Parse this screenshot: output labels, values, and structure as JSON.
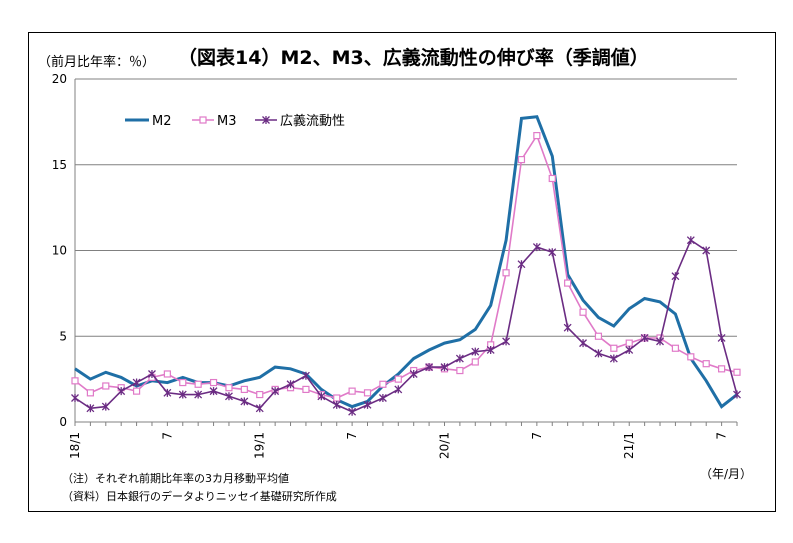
{
  "chart_data": {
    "type": "line",
    "title": "（図表14）M2、M3、広義流動性の伸び率（季調値）",
    "ylabel": "（前月比年率：％）",
    "xlabel": "（年/月）",
    "ylim": [
      0,
      20
    ],
    "yticks": [
      0,
      5,
      10,
      15,
      20
    ],
    "grid": "horizontal",
    "legend_position": "top-left",
    "x_tick_labels": [
      {
        "index": 0,
        "label": "18/1"
      },
      {
        "index": 6,
        "label": "7"
      },
      {
        "index": 12,
        "label": "19/1"
      },
      {
        "index": 18,
        "label": "7"
      },
      {
        "index": 24,
        "label": "20/1"
      },
      {
        "index": 30,
        "label": "7"
      },
      {
        "index": 36,
        "label": "21/1"
      },
      {
        "index": 42,
        "label": "7"
      }
    ],
    "series": [
      {
        "name": "M2",
        "color": "#1f6fa6",
        "marker": "none",
        "values": [
          3.1,
          2.5,
          2.9,
          2.6,
          2.1,
          2.4,
          2.3,
          2.6,
          2.3,
          2.3,
          2.1,
          2.4,
          2.6,
          3.2,
          3.1,
          2.8,
          1.9,
          1.3,
          0.9,
          1.2,
          2.1,
          2.8,
          3.7,
          4.2,
          4.6,
          4.8,
          5.4,
          6.8,
          10.6,
          17.7,
          17.8,
          15.5,
          8.6,
          7.1,
          6.1,
          5.6,
          6.6,
          7.2,
          7.0,
          6.3,
          3.7,
          2.4,
          0.9,
          1.6
        ]
      },
      {
        "name": "M3",
        "color": "#e07ac8",
        "marker": "square",
        "values": [
          2.4,
          1.7,
          2.1,
          2.0,
          1.8,
          2.6,
          2.8,
          2.3,
          2.2,
          2.3,
          2.0,
          1.9,
          1.6,
          1.9,
          2.0,
          1.9,
          1.6,
          1.4,
          1.8,
          1.7,
          2.2,
          2.5,
          3.0,
          3.2,
          3.1,
          3.0,
          3.5,
          4.5,
          8.7,
          15.3,
          16.7,
          14.2,
          8.1,
          6.4,
          5.0,
          4.3,
          4.6,
          4.9,
          4.9,
          4.3,
          3.8,
          3.4,
          3.1,
          2.9
        ]
      },
      {
        "name": "広義流動性",
        "color": "#6b2c83",
        "marker": "star",
        "values": [
          1.4,
          0.8,
          0.9,
          1.8,
          2.3,
          2.8,
          1.7,
          1.6,
          1.6,
          1.8,
          1.5,
          1.2,
          0.8,
          1.8,
          2.2,
          2.7,
          1.5,
          1.0,
          0.6,
          1.0,
          1.4,
          1.9,
          2.8,
          3.2,
          3.2,
          3.7,
          4.1,
          4.2,
          4.7,
          9.2,
          10.2,
          9.9,
          5.5,
          4.6,
          4.0,
          3.7,
          4.2,
          4.9,
          4.7,
          8.5,
          10.6,
          10.0,
          4.9,
          1.6
        ]
      }
    ],
    "notes": [
      "（注）それぞれ前期比年率の3カ月移動平均値",
      "（資料）日本銀行のデータよりニッセイ基礎研究所作成"
    ]
  }
}
